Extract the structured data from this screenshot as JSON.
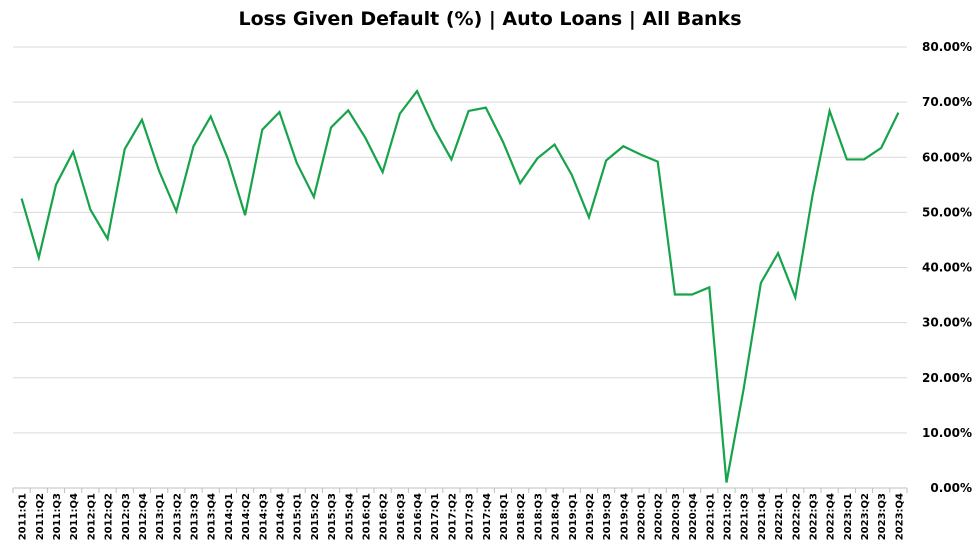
{
  "chart_data": {
    "type": "line",
    "title": "Loss Given Default (%) | Auto Loans | All Banks",
    "xlabel": "",
    "ylabel": "",
    "ylim": [
      0,
      80
    ],
    "y_tick_labels": [
      "0.00%",
      "10.00%",
      "20.00%",
      "30.00%",
      "40.00%",
      "50.00%",
      "60.00%",
      "70.00%",
      "80.00%"
    ],
    "y_axis_position": "right",
    "grid": "horizontal",
    "legend": "none",
    "line_color": "#17a34a",
    "categories": [
      "2011:Q1",
      "2011:Q2",
      "2011:Q3",
      "2011:Q4",
      "2012:Q1",
      "2012:Q2",
      "2012:Q3",
      "2012:Q4",
      "2013:Q1",
      "2013:Q2",
      "2013:Q3",
      "2013:Q4",
      "2014:Q1",
      "2014:Q2",
      "2014:Q3",
      "2014:Q4",
      "2015:Q1",
      "2015:Q2",
      "2015:Q3",
      "2015:Q4",
      "2016:Q1",
      "2016:Q2",
      "2016:Q3",
      "2016:Q4",
      "2017:Q1",
      "2017:Q2",
      "2017:Q3",
      "2017:Q4",
      "2018:Q1",
      "2018:Q2",
      "2018:Q3",
      "2018:Q4",
      "2019:Q1",
      "2019:Q2",
      "2019:Q3",
      "2019:Q4",
      "2020:Q1",
      "2020:Q2",
      "2020:Q3",
      "2020:Q4",
      "2021:Q1",
      "2021:Q2",
      "2021:Q3",
      "2021:Q4",
      "2022:Q1",
      "2022:Q2",
      "2022:Q3",
      "2022:Q4",
      "2023:Q1",
      "2023:Q2",
      "2023:Q3",
      "2023:Q4"
    ],
    "series": [
      {
        "values": [
          52.5,
          41.8,
          55.0,
          61.0,
          50.5,
          45.2,
          61.5,
          66.8,
          57.5,
          50.2,
          62.0,
          67.4,
          59.7,
          49.5,
          65.0,
          68.2,
          59.0,
          52.8,
          65.4,
          68.5,
          63.5,
          57.3,
          67.9,
          72.0,
          65.2,
          59.6,
          68.4,
          69.0,
          62.8,
          55.3,
          59.8,
          62.3,
          56.8,
          49.1,
          59.4,
          62.0,
          60.5,
          59.2,
          35.1,
          35.1,
          36.4,
          1.0,
          18.0,
          37.2,
          42.6,
          34.6,
          53.0,
          68.4,
          59.6,
          59.6,
          61.7,
          68.1
        ]
      }
    ]
  }
}
